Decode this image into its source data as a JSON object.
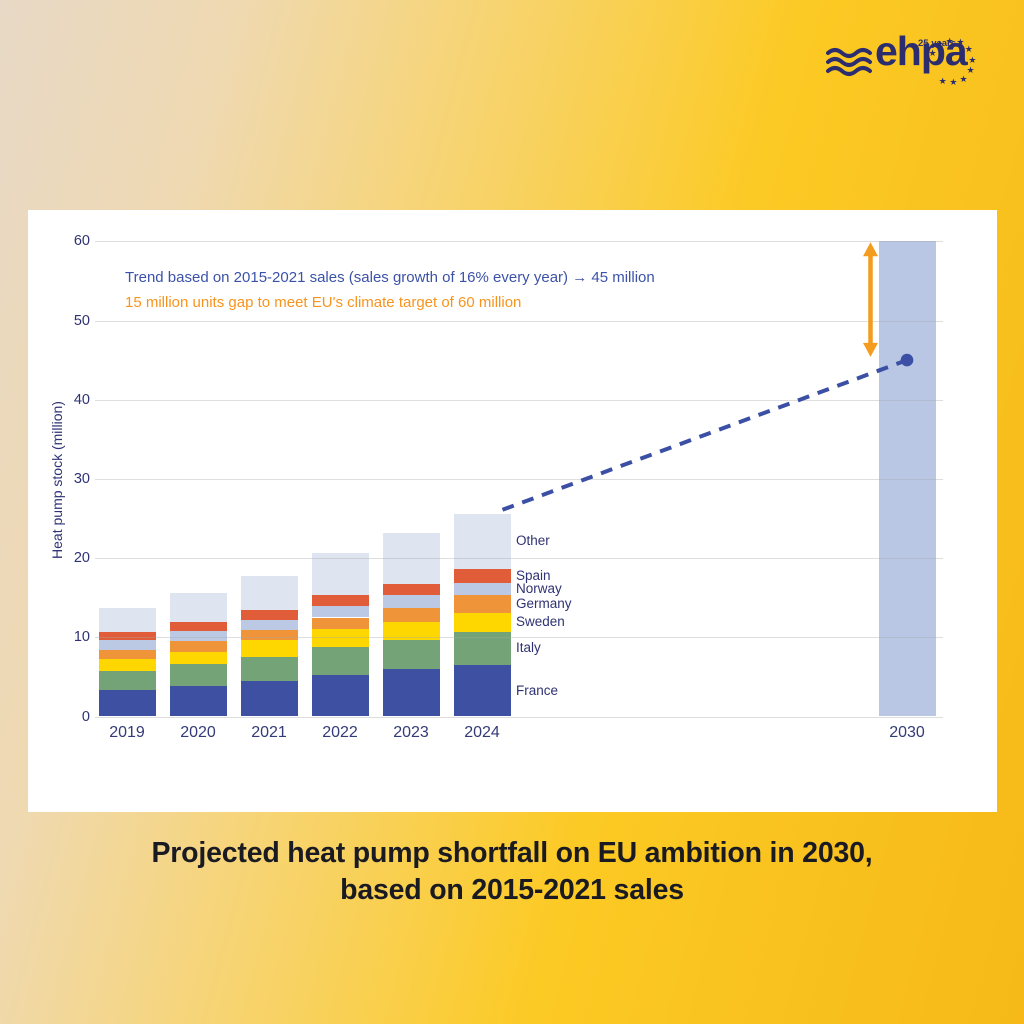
{
  "logo": {
    "brand": "ehpa",
    "badge": "25 years"
  },
  "caption": {
    "line1": "Projected heat pump shortfall on EU ambition in 2030,",
    "line2": "based on 2015-2021 sales"
  },
  "annotations": {
    "trend_text": "Trend based on 2015-2021 sales (sales growth of 16% every year) → 45 million",
    "trend_color": "#3c52a9",
    "gap_text": "15 million units gap to meet EU's climate target of 60 million",
    "gap_color": "#f7941d"
  },
  "chart_data": {
    "type": "bar",
    "stacked": true,
    "title": "",
    "xlabel": "",
    "ylabel": "Heat pump stock (million)",
    "ylim": [
      0,
      60
    ],
    "yticks": [
      0,
      10,
      20,
      30,
      40,
      50,
      60
    ],
    "grid": true,
    "legend_position": "right of 2024 bar",
    "categories": [
      "2019",
      "2020",
      "2021",
      "2022",
      "2023",
      "2024"
    ],
    "series": [
      {
        "name": "France",
        "color": "#3d50a2",
        "values": [
          3.3,
          3.8,
          4.5,
          5.2,
          6.0,
          6.5
        ]
      },
      {
        "name": "Italy",
        "color": "#73a376",
        "values": [
          2.4,
          2.8,
          3.0,
          3.6,
          3.6,
          4.2
        ]
      },
      {
        "name": "Sweden",
        "color": "#fed700",
        "values": [
          1.5,
          1.6,
          2.1,
          2.3,
          2.3,
          2.4
        ]
      },
      {
        "name": "Germany",
        "color": "#f0943a",
        "values": [
          1.2,
          1.3,
          1.3,
          1.4,
          1.8,
          2.3
        ]
      },
      {
        "name": "Norway",
        "color": "#bcc9e4",
        "values": [
          1.3,
          1.3,
          1.3,
          1.5,
          1.6,
          1.5
        ]
      },
      {
        "name": "Spain",
        "color": "#e15c38",
        "values": [
          1.0,
          1.1,
          1.2,
          1.4,
          1.4,
          1.7
        ]
      },
      {
        "name": "Other",
        "color": "#dfe4f1",
        "values": [
          3.0,
          3.7,
          4.3,
          5.3,
          6.5,
          7.0
        ]
      }
    ],
    "projection": {
      "category": "2030",
      "target_value": 60,
      "target_color": "#b9c7e5",
      "trend_value": 45,
      "trend_color": "#3b4fa4",
      "gap_value": 15,
      "gap_arrow_color": "#f49c1e"
    }
  }
}
